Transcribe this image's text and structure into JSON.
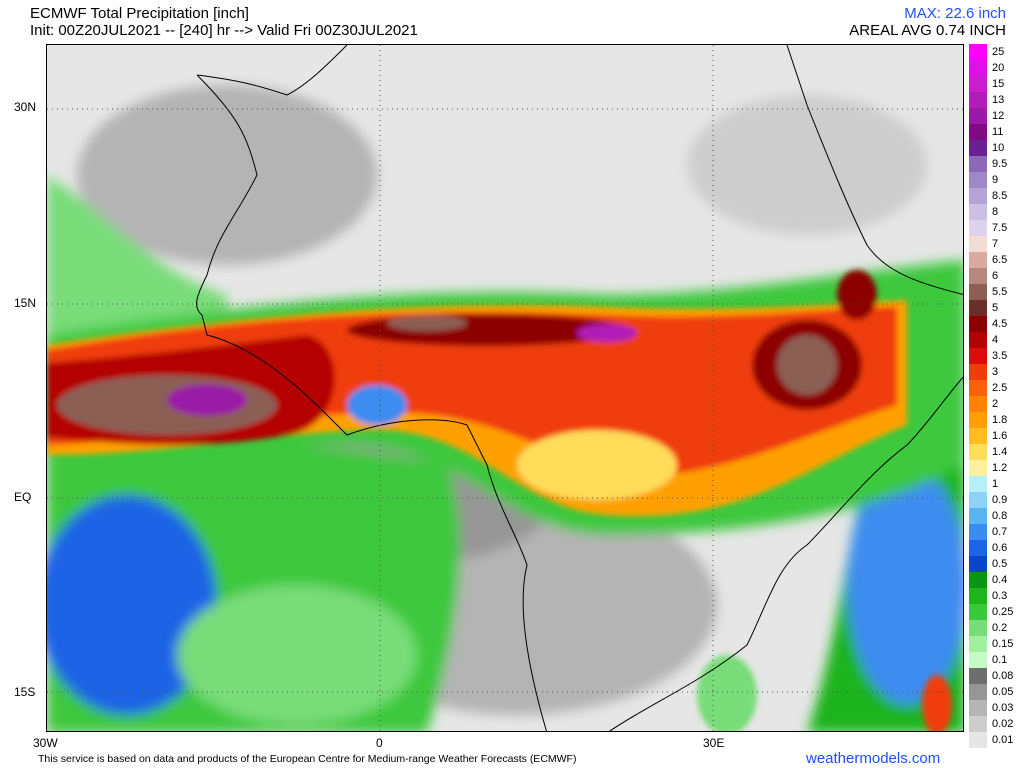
{
  "header": {
    "title": "ECMWF Total Precipitation [inch]",
    "init": "Init: 00Z20JUL2021 -- [240] hr --> Valid Fri 00Z30JUL2021",
    "max": "MAX: 22.6 inch",
    "areal": "AREAL AVG 0.74 INCH"
  },
  "axes": {
    "lat_labels": [
      "30N",
      "15N",
      "EQ",
      "15S"
    ],
    "lon_labels": [
      "30W",
      "0",
      "30E"
    ]
  },
  "legend": {
    "entries": [
      {
        "label": "25",
        "color": "#ff00ff"
      },
      {
        "label": "20",
        "color": "#e010e6"
      },
      {
        "label": "15",
        "color": "#c81ecc"
      },
      {
        "label": "13",
        "color": "#b01eb8"
      },
      {
        "label": "12",
        "color": "#9a1aa6"
      },
      {
        "label": "11",
        "color": "#800a80"
      },
      {
        "label": "10",
        "color": "#6a2090"
      },
      {
        "label": "9.5",
        "color": "#8a6ab8"
      },
      {
        "label": "9",
        "color": "#9e88c8"
      },
      {
        "label": "8.5",
        "color": "#b4a4d6"
      },
      {
        "label": "8",
        "color": "#cbbfe4"
      },
      {
        "label": "7.5",
        "color": "#ddd3ee"
      },
      {
        "label": "7",
        "color": "#f3dcd4"
      },
      {
        "label": "6.5",
        "color": "#d8aaa0"
      },
      {
        "label": "6",
        "color": "#b8887e"
      },
      {
        "label": "5.5",
        "color": "#8c5e54"
      },
      {
        "label": "5",
        "color": "#6a3028"
      },
      {
        "label": "4.5",
        "color": "#8c0000"
      },
      {
        "label": "4",
        "color": "#b40000"
      },
      {
        "label": "3.5",
        "color": "#dc0a0a"
      },
      {
        "label": "3",
        "color": "#f03c0a"
      },
      {
        "label": "2.5",
        "color": "#ff5f0a"
      },
      {
        "label": "2",
        "color": "#ff8200"
      },
      {
        "label": "1.8",
        "color": "#ffa000"
      },
      {
        "label": "1.6",
        "color": "#ffbe1e"
      },
      {
        "label": "1.4",
        "color": "#ffdc5a"
      },
      {
        "label": "1.2",
        "color": "#fff0a0"
      },
      {
        "label": "1",
        "color": "#b4f0f8"
      },
      {
        "label": "0.9",
        "color": "#8cd2f8"
      },
      {
        "label": "0.8",
        "color": "#5ab4f0"
      },
      {
        "label": "0.7",
        "color": "#3c8cf0"
      },
      {
        "label": "0.6",
        "color": "#1e64e6"
      },
      {
        "label": "0.5",
        "color": "#0a46c8"
      },
      {
        "label": "0.4",
        "color": "#0a9614"
      },
      {
        "label": "0.3",
        "color": "#1eb41e"
      },
      {
        "label": "0.25",
        "color": "#3cc83c"
      },
      {
        "label": "0.2",
        "color": "#78dc78"
      },
      {
        "label": "0.15",
        "color": "#a0f0a0"
      },
      {
        "label": "0.1",
        "color": "#c8fac8"
      },
      {
        "label": "0.08",
        "color": "#6e6e6e"
      },
      {
        "label": "0.05",
        "color": "#969696"
      },
      {
        "label": "0.03",
        "color": "#b4b4b4"
      },
      {
        "label": "0.02",
        "color": "#cdcdcd"
      },
      {
        "label": "0.01",
        "color": "#e6e6e6"
      }
    ]
  },
  "footer": {
    "attribution": "This service is based on data and products of the European Centre for Medium-range Weather Forecasts (ECMWF)",
    "site": "weathermodels.com"
  }
}
